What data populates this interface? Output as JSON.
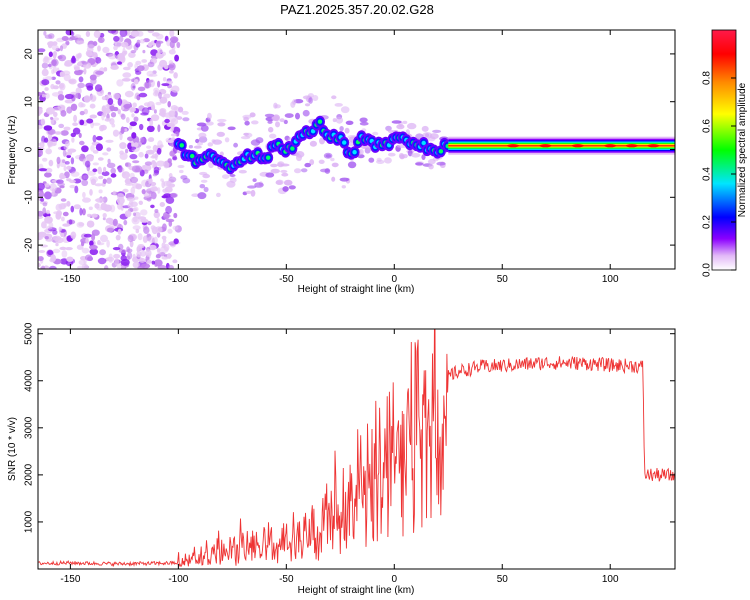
{
  "figure": {
    "title": "PAZ1.2025.357.20.02.G28"
  },
  "chart_data": [
    {
      "type": "heatmap",
      "title": "PAZ1.2025.357.20.02.G28",
      "xlabel": "Height of straight line (km)",
      "ylabel": "Frequency (Hz)",
      "xlim": [
        -165,
        130
      ],
      "ylim": [
        -25,
        25
      ],
      "xticks": [
        -150,
        -100,
        -50,
        0,
        50,
        100
      ],
      "yticks": [
        -20,
        -10,
        0,
        10,
        20
      ],
      "colorbar": {
        "label": "Normalized spectral amplitude",
        "range": [
          0,
          1
        ],
        "ticks": [
          0.0,
          0.2,
          0.4,
          0.6,
          0.8
        ],
        "tick_labels": [
          "0.0",
          "0.2",
          "0.4",
          "0.6",
          "0.8"
        ],
        "colormap_stops": [
          "#ffffff",
          "#e2b8f7",
          "#8b00ff",
          "#0000ff",
          "#00e5ff",
          "#00ff00",
          "#ffff00",
          "#ff8c00",
          "#ff0000",
          "#ff1a4a"
        ]
      },
      "noise_region": {
        "x": [
          -165,
          -100
        ],
        "y": [
          -25,
          25
        ]
      },
      "ridge": [
        {
          "x": -100,
          "y": 1.0
        },
        {
          "x": -95,
          "y": -1.5
        },
        {
          "x": -90,
          "y": -3.0
        },
        {
          "x": -85,
          "y": -1.0
        },
        {
          "x": -80,
          "y": -2.5
        },
        {
          "x": -75,
          "y": -3.5
        },
        {
          "x": -70,
          "y": -1.5
        },
        {
          "x": -65,
          "y": -1.0
        },
        {
          "x": -60,
          "y": -2.0
        },
        {
          "x": -55,
          "y": 1.0
        },
        {
          "x": -50,
          "y": -0.5
        },
        {
          "x": -45,
          "y": 2.0
        },
        {
          "x": -40,
          "y": 3.5
        },
        {
          "x": -35,
          "y": 5.5
        },
        {
          "x": -30,
          "y": 3.0
        },
        {
          "x": -25,
          "y": 2.0
        },
        {
          "x": -20,
          "y": -1.5
        },
        {
          "x": -15,
          "y": 2.5
        },
        {
          "x": -10,
          "y": 1.0
        },
        {
          "x": -5,
          "y": 0.5
        },
        {
          "x": 0,
          "y": 2.0
        },
        {
          "x": 5,
          "y": 2.0
        },
        {
          "x": 10,
          "y": 1.0
        },
        {
          "x": 15,
          "y": 0.5
        },
        {
          "x": 20,
          "y": 0.0
        },
        {
          "x": 25,
          "y": 0.8
        },
        {
          "x": 130,
          "y": 0.8
        }
      ]
    },
    {
      "type": "line",
      "xlabel": "Height of straight line (km)",
      "ylabel": "SNR (10 * v/v)",
      "xlim": [
        -165,
        130
      ],
      "ylim": [
        0,
        5100
      ],
      "xticks": [
        -150,
        -100,
        -50,
        0,
        50,
        100
      ],
      "yticks": [
        1000,
        2000,
        3000,
        4000,
        5000
      ],
      "line_color": "#ee3333",
      "series": [
        {
          "name": "SNR",
          "x": [
            -165,
            -150,
            -130,
            -110,
            -100,
            -95,
            -90,
            -80,
            -70,
            -60,
            -50,
            -40,
            -30,
            -25,
            -20,
            -15,
            -12,
            -10,
            -5,
            0,
            5,
            10,
            15,
            20,
            25,
            30,
            40,
            50,
            60,
            70,
            80,
            90,
            100,
            110,
            115,
            116,
            120,
            130
          ],
          "values": [
            120,
            130,
            110,
            120,
            130,
            250,
            350,
            450,
            550,
            650,
            750,
            900,
            1200,
            1500,
            1700,
            2000,
            2400,
            2700,
            3000,
            3300,
            3400,
            3550,
            3700,
            3900,
            4100,
            4200,
            4300,
            4320,
            4350,
            4380,
            4380,
            4370,
            4330,
            4320,
            4300,
            2000,
            2000,
            1980
          ]
        }
      ]
    }
  ]
}
